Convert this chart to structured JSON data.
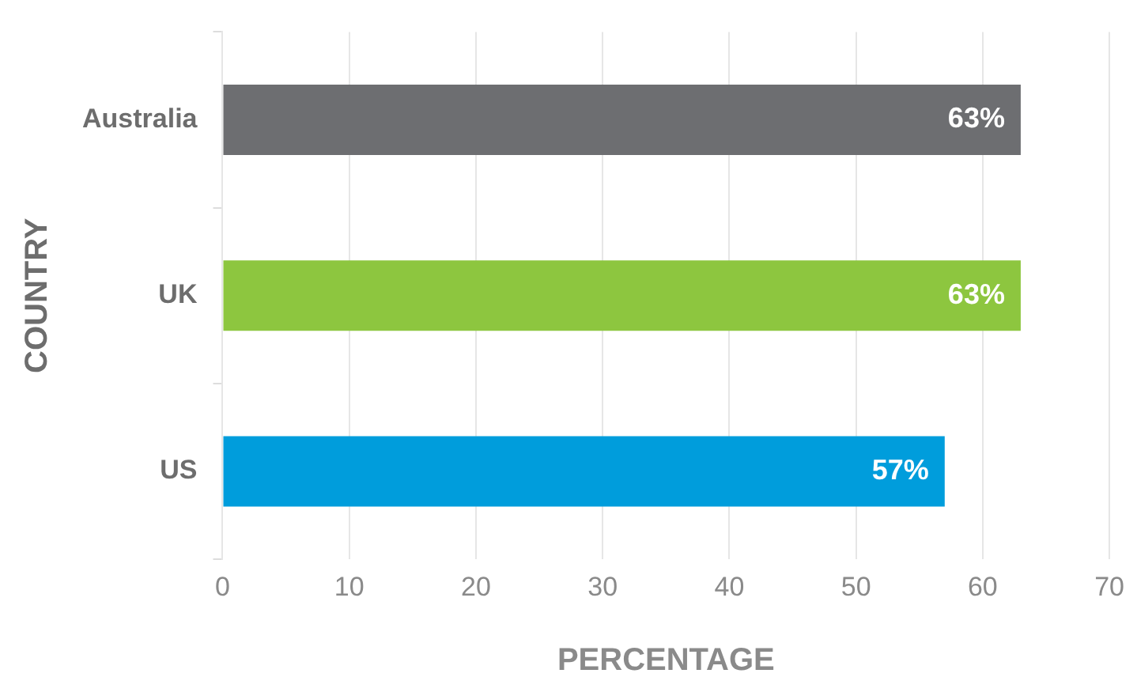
{
  "chart_data": {
    "type": "bar",
    "orientation": "horizontal",
    "xlabel": "PERCENTAGE",
    "ylabel": "COUNTRY",
    "categories": [
      "Australia",
      "UK",
      "US"
    ],
    "values": [
      63,
      63,
      57
    ],
    "colors": [
      "#6d6e71",
      "#8dc63f",
      "#009ddc"
    ],
    "value_labels": [
      "63%",
      "63%",
      "57%"
    ],
    "xlim": [
      0,
      70
    ],
    "xticks": [
      0,
      10,
      20,
      30,
      40,
      50,
      60,
      70
    ],
    "grid": "x",
    "legend": false
  }
}
